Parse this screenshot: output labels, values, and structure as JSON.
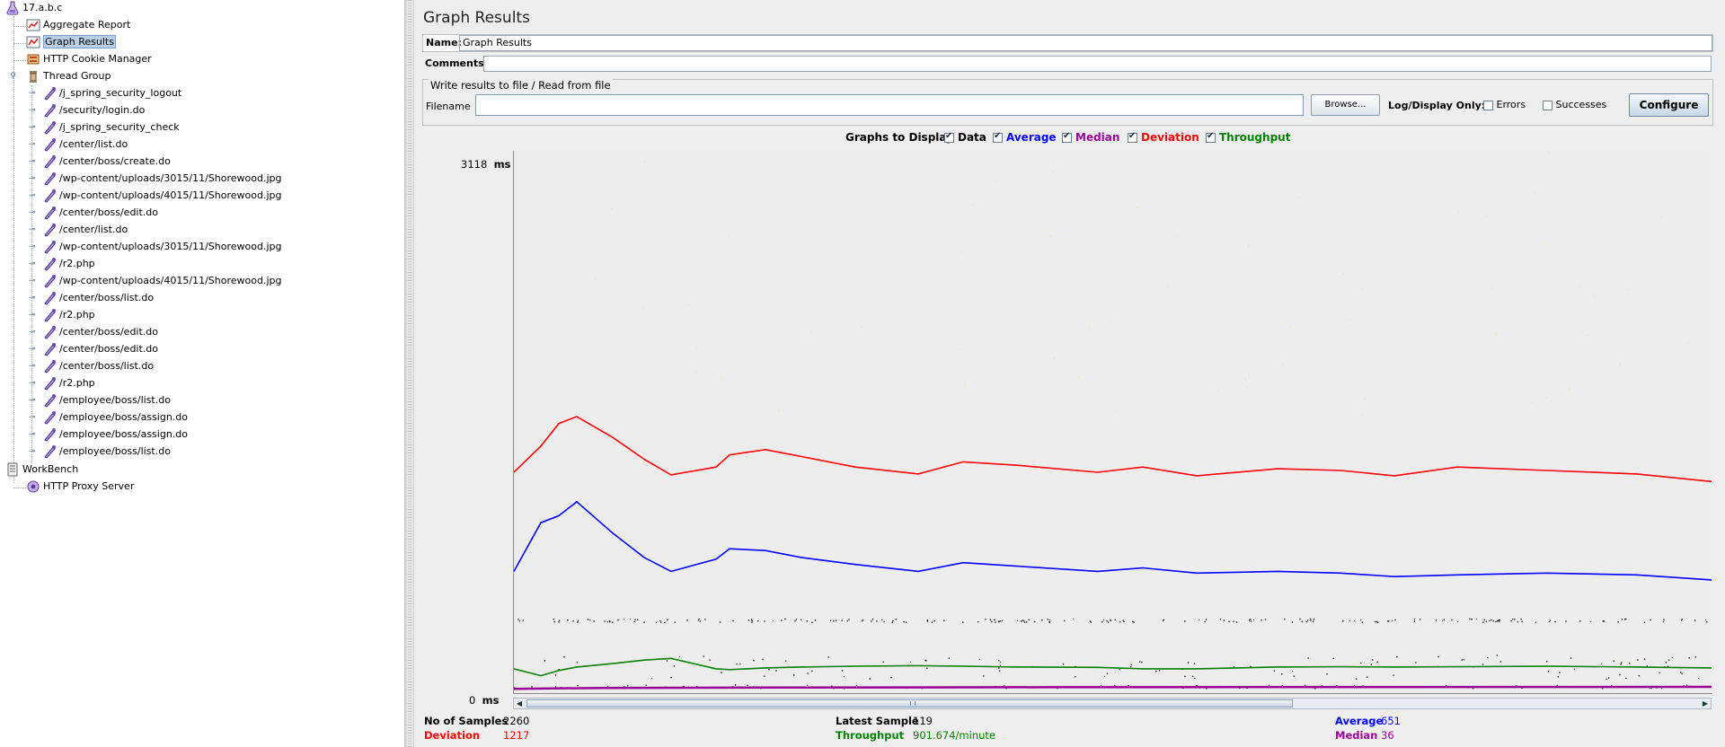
{
  "tree": {
    "root": "17.a.b.c",
    "items": [
      "Aggregate Report",
      "Graph Results",
      "HTTP Cookie Manager",
      "Thread Group"
    ],
    "samplers": [
      "/j_spring_security_logout",
      "/security/login.do",
      "/j_spring_security_check",
      "/center/list.do",
      "/center/boss/create.do",
      "/wp-content/uploads/3015/11/Shorewood.jpg",
      "/wp-content/uploads/4015/11/Shorewood.jpg",
      "/center/boss/edit.do",
      "/center/list.do",
      "/wp-content/uploads/3015/11/Shorewood.jpg",
      "/r2.php",
      "/wp-content/uploads/4015/11/Shorewood.jpg",
      "/center/boss/list.do",
      "/r2.php",
      "/center/boss/edit.do",
      "/center/boss/edit.do",
      "/center/boss/list.do",
      "/r2.php",
      "/employee/boss/list.do",
      "/employee/boss/assign.do",
      "/employee/boss/assign.do",
      "/employee/boss/list.do"
    ],
    "workbench": "WorkBench",
    "proxy": "HTTP Proxy Server"
  },
  "panel": {
    "title": "Graph Results",
    "name_label": "Name:",
    "name_value": "Graph Results",
    "comments_label": "Comments:",
    "comments_value": "",
    "file_group_title": "Write results to file / Read from file",
    "filename_label": "Filename",
    "filename_value": "",
    "browse_label": "Browse...",
    "log_display_label": "Log/Display Only:",
    "errors_label": "Errors",
    "successes_label": "Successes",
    "configure_label": "Configure"
  },
  "graphs_to_display": {
    "label": "Graphs to Display",
    "options": [
      {
        "label": "Data",
        "checked": true,
        "color": "#000000"
      },
      {
        "label": "Average",
        "checked": true,
        "color": "#0000ff"
      },
      {
        "label": "Median",
        "checked": true,
        "color": "#990099"
      },
      {
        "label": "Deviation",
        "checked": true,
        "color": "#ff0000"
      },
      {
        "label": "Throughput",
        "checked": true,
        "color": "#008000"
      }
    ]
  },
  "chart_data": {
    "type": "line",
    "y_max_label": "3118",
    "y_min_label": "0",
    "y_unit": "ms",
    "ylim": [
      0,
      3118
    ],
    "series": [
      {
        "name": "Deviation",
        "color": "#ff0000",
        "x": [
          0,
          30,
          50,
          70,
          110,
          145,
          175,
          225,
          240,
          280,
          320,
          380,
          450,
          500,
          560,
          650,
          700,
          760,
          850,
          920,
          980,
          1050,
          1150,
          1250,
          1333
        ],
        "y": [
          1270,
          1420,
          1550,
          1590,
          1470,
          1345,
          1255,
          1300,
          1370,
          1400,
          1360,
          1300,
          1260,
          1330,
          1310,
          1270,
          1300,
          1250,
          1290,
          1280,
          1250,
          1300,
          1280,
          1260,
          1217
        ]
      },
      {
        "name": "Average",
        "color": "#0000ff",
        "x": [
          0,
          30,
          50,
          70,
          110,
          145,
          175,
          225,
          240,
          280,
          320,
          380,
          450,
          500,
          560,
          650,
          700,
          760,
          850,
          920,
          980,
          1050,
          1150,
          1250,
          1333
        ],
        "y": [
          700,
          980,
          1020,
          1100,
          920,
          780,
          700,
          770,
          830,
          820,
          780,
          740,
          700,
          750,
          730,
          700,
          720,
          690,
          700,
          690,
          670,
          680,
          690,
          680,
          651
        ]
      },
      {
        "name": "Throughput",
        "color": "#008000",
        "x": [
          0,
          30,
          50,
          70,
          110,
          145,
          175,
          225,
          240,
          280,
          320,
          380,
          450,
          500,
          560,
          650,
          700,
          760,
          850,
          920,
          980,
          1050,
          1150,
          1250,
          1333
        ],
        "y": [
          140,
          100,
          130,
          150,
          170,
          190,
          200,
          140,
          135,
          145,
          150,
          155,
          158,
          155,
          150,
          148,
          140,
          140,
          150,
          152,
          150,
          152,
          155,
          150,
          145
        ]
      },
      {
        "name": "Median",
        "color": "#990099",
        "x": [
          0,
          100,
          300,
          600,
          1000,
          1333
        ],
        "y": [
          25,
          30,
          32,
          34,
          35,
          36
        ]
      }
    ]
  },
  "stats": {
    "samples_label": "No of Samples",
    "samples_value": "2260",
    "latest_label": "Latest Sample",
    "latest_value": "119",
    "average_label": "Average",
    "average_value": "651",
    "deviation_label": "Deviation",
    "deviation_value": "1217",
    "throughput_label": "Throughput",
    "throughput_value": "901.674/minute",
    "median_label": "Median",
    "median_value": "36"
  }
}
